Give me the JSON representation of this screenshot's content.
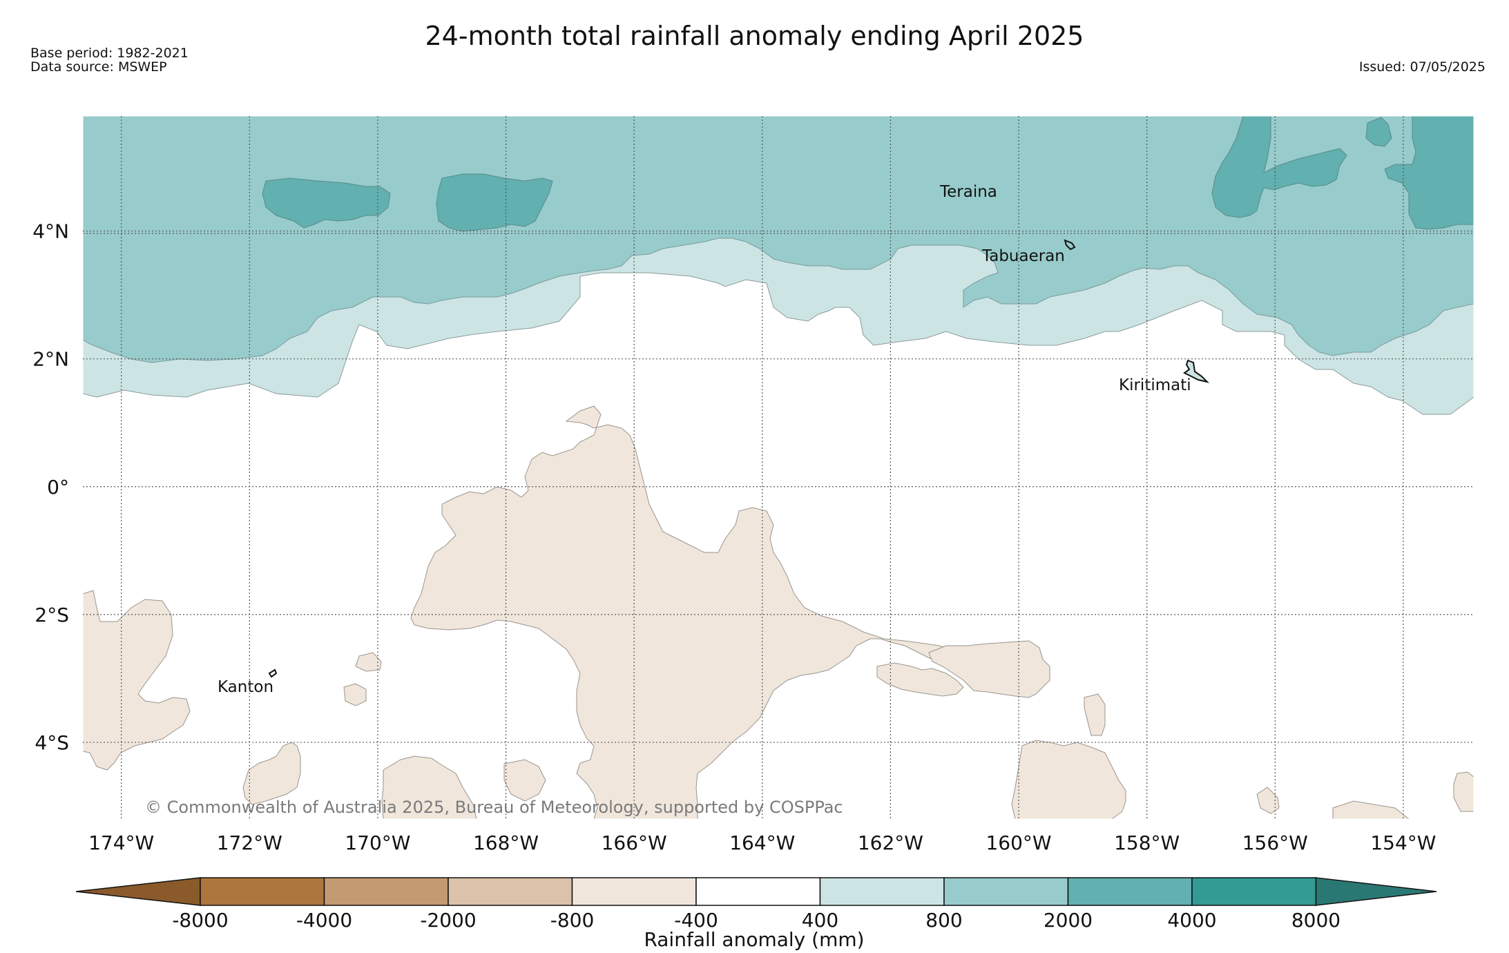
{
  "title": "24-month total rainfall anomaly ending April 2025",
  "base_period": "Base period: 1982-2021",
  "data_source": "Data source: MSWEP",
  "issued": "Issued: 07/05/2025",
  "copyright": "© Commonwealth of Australia 2025, Bureau of Meteorology, supported by COSPPac",
  "places": {
    "teraina": "Teraina",
    "tabuaeran": "Tabuaeran",
    "kiritimati": "Kiritimati",
    "kanton": "Kanton"
  },
  "axes": {
    "lat_ticks": [
      "4°N",
      "2°N",
      "0°",
      "2°S",
      "4°S"
    ],
    "lon_ticks": [
      "174°W",
      "172°W",
      "170°W",
      "168°W",
      "166°W",
      "164°W",
      "162°W",
      "160°W",
      "158°W",
      "156°W",
      "154°W"
    ],
    "lat_range": [
      -5.2,
      5.8
    ],
    "lon_range": [
      -174.6,
      -152.9
    ]
  },
  "legend": {
    "label": "Rainfall anomaly (mm)",
    "ticks": [
      "-8000",
      "-4000",
      "-2000",
      "-800",
      "-400",
      "400",
      "800",
      "2000",
      "4000",
      "8000"
    ],
    "colors": [
      "#8b5a2b",
      "#ad763c",
      "#c49a72",
      "#dcc2a8",
      "#f0e6dc",
      "#ffffff",
      "#cce5e4",
      "#98cbcb",
      "#62b0b0",
      "#339a94",
      "#2a7874"
    ]
  }
}
